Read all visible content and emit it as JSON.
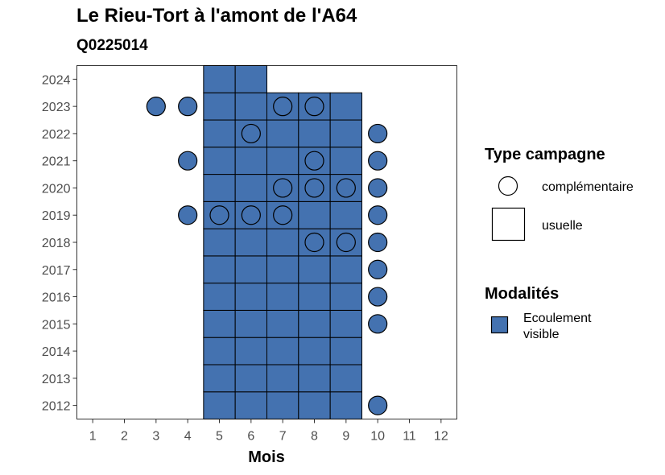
{
  "chart_data": {
    "type": "heatmap",
    "title": "Le Rieu-Tort à l'amont de l'A64",
    "subtitle": "Q0225014",
    "xlabel": "Mois",
    "ylabel": "",
    "x_ticks": [
      1,
      2,
      3,
      4,
      5,
      6,
      7,
      8,
      9,
      10,
      11,
      12
    ],
    "y_ticks": [
      2012,
      2013,
      2014,
      2015,
      2016,
      2017,
      2018,
      2019,
      2020,
      2021,
      2022,
      2023,
      2024
    ],
    "xlim": [
      0.5,
      12.5
    ],
    "ylim": [
      2011.5,
      2024.5
    ],
    "grid": false,
    "fill_color": "#4472b0",
    "legend": {
      "placement": "right",
      "type_title": "Type campagne",
      "type_entries": [
        {
          "label": "complémentaire",
          "shape": "circle"
        },
        {
          "label": "usuelle",
          "shape": "square"
        }
      ],
      "modalite_title": "Modalités",
      "modalite_entries": [
        {
          "label_line1": "Ecoulement",
          "label_line2": "visible",
          "color": "#4472b0"
        }
      ]
    },
    "usuelle": [
      {
        "year": 2012,
        "months": [
          5,
          6,
          7,
          8,
          9
        ]
      },
      {
        "year": 2013,
        "months": [
          5,
          6,
          7,
          8,
          9
        ]
      },
      {
        "year": 2014,
        "months": [
          5,
          6,
          7,
          8,
          9
        ]
      },
      {
        "year": 2015,
        "months": [
          5,
          6,
          7,
          8,
          9
        ]
      },
      {
        "year": 2016,
        "months": [
          5,
          6,
          7,
          8,
          9
        ]
      },
      {
        "year": 2017,
        "months": [
          5,
          6,
          7,
          8,
          9
        ]
      },
      {
        "year": 2018,
        "months": [
          5,
          6,
          7,
          8,
          9
        ]
      },
      {
        "year": 2019,
        "months": [
          5,
          6,
          7,
          8,
          9
        ]
      },
      {
        "year": 2020,
        "months": [
          5,
          6,
          7,
          8,
          9
        ]
      },
      {
        "year": 2021,
        "months": [
          5,
          6,
          7,
          8,
          9
        ]
      },
      {
        "year": 2022,
        "months": [
          5,
          6,
          7,
          8,
          9
        ]
      },
      {
        "year": 2023,
        "months": [
          5,
          6,
          7,
          8,
          9
        ]
      },
      {
        "year": 2024,
        "months": [
          5,
          6
        ]
      }
    ],
    "complementaire": [
      {
        "year": 2012,
        "month": 10,
        "filled": true
      },
      {
        "year": 2015,
        "month": 10,
        "filled": true
      },
      {
        "year": 2016,
        "month": 10,
        "filled": true
      },
      {
        "year": 2017,
        "month": 10,
        "filled": true
      },
      {
        "year": 2018,
        "month": 8,
        "filled": false
      },
      {
        "year": 2018,
        "month": 9,
        "filled": false
      },
      {
        "year": 2018,
        "month": 10,
        "filled": true
      },
      {
        "year": 2019,
        "month": 4,
        "filled": true
      },
      {
        "year": 2019,
        "month": 5,
        "filled": false
      },
      {
        "year": 2019,
        "month": 6,
        "filled": false
      },
      {
        "year": 2019,
        "month": 7,
        "filled": false
      },
      {
        "year": 2019,
        "month": 10,
        "filled": true
      },
      {
        "year": 2020,
        "month": 7,
        "filled": false
      },
      {
        "year": 2020,
        "month": 8,
        "filled": false
      },
      {
        "year": 2020,
        "month": 9,
        "filled": false
      },
      {
        "year": 2020,
        "month": 10,
        "filled": true
      },
      {
        "year": 2021,
        "month": 4,
        "filled": true
      },
      {
        "year": 2021,
        "month": 8,
        "filled": false
      },
      {
        "year": 2021,
        "month": 10,
        "filled": true
      },
      {
        "year": 2022,
        "month": 6,
        "filled": false
      },
      {
        "year": 2022,
        "month": 10,
        "filled": true
      },
      {
        "year": 2023,
        "month": 3,
        "filled": true
      },
      {
        "year": 2023,
        "month": 4,
        "filled": true
      },
      {
        "year": 2023,
        "month": 7,
        "filled": false
      },
      {
        "year": 2023,
        "month": 8,
        "filled": false
      }
    ]
  }
}
